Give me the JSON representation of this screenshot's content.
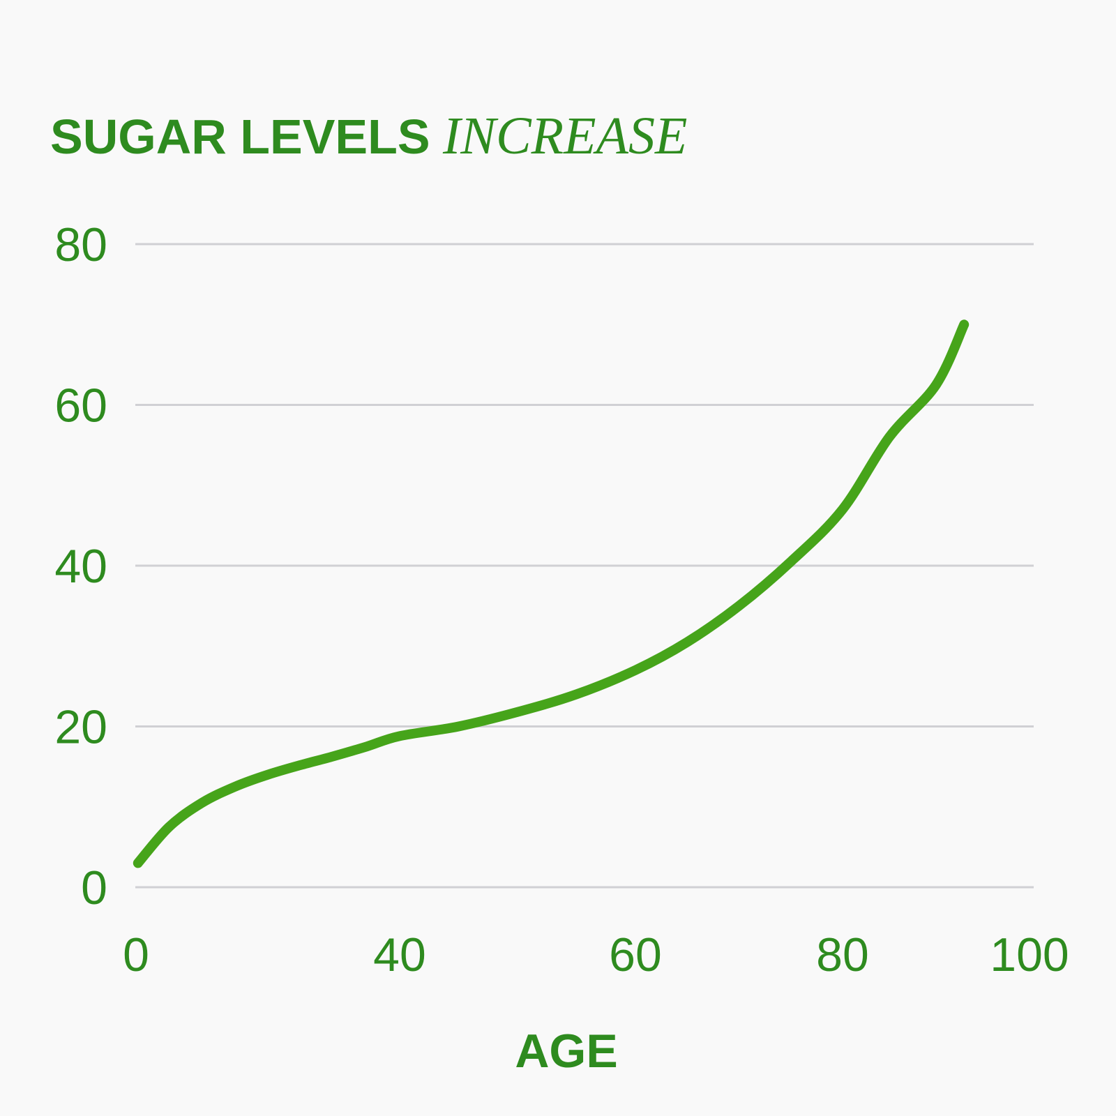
{
  "colors": {
    "accent": "#2e8b1f",
    "line": "#46a41a",
    "grid": "#d0d0d4",
    "background": "#f9f9f9"
  },
  "chart_data": {
    "type": "line",
    "title": "SUGAR LEVELS",
    "title_emphasis": "INCREASE",
    "xlabel": "AGE",
    "ylabel": "",
    "x_ticks": [
      {
        "value": 0,
        "label": "0"
      },
      {
        "value": 40,
        "label": "40"
      },
      {
        "value": 60,
        "label": "60"
      },
      {
        "value": 80,
        "label": "80"
      },
      {
        "value": 100,
        "label": "100"
      }
    ],
    "y_ticks": [
      {
        "value": 0,
        "label": "0"
      },
      {
        "value": 20,
        "label": "20"
      },
      {
        "value": 40,
        "label": "40"
      },
      {
        "value": 60,
        "label": "60"
      },
      {
        "value": 80,
        "label": "80"
      }
    ],
    "ylim": [
      0,
      80
    ],
    "grid": true,
    "legend": "none",
    "series": [
      {
        "points": [
          [
            0.3,
            3
          ],
          [
            5,
            7.5
          ],
          [
            10,
            10.5
          ],
          [
            15,
            12.5
          ],
          [
            20,
            14
          ],
          [
            25,
            15.2
          ],
          [
            30,
            16.3
          ],
          [
            35,
            17.5
          ],
          [
            40,
            18.8
          ],
          [
            45,
            20
          ],
          [
            50,
            21.8
          ],
          [
            55,
            24
          ],
          [
            60,
            27
          ],
          [
            65,
            30.5
          ],
          [
            70,
            35
          ],
          [
            75,
            40.5
          ],
          [
            80,
            47
          ],
          [
            85,
            56
          ],
          [
            90,
            62.5
          ],
          [
            93,
            70
          ]
        ]
      }
    ]
  }
}
